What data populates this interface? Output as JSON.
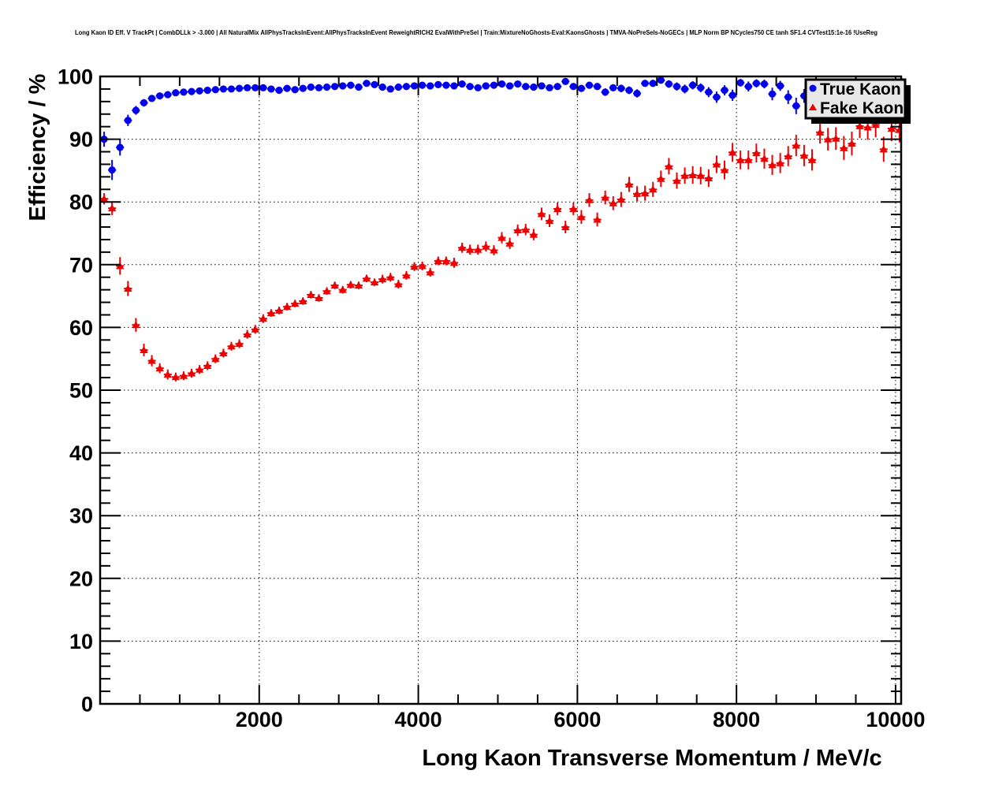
{
  "header": {
    "title": "Long Kaon ID Eff. V TrackPt | CombDLLk > -3.000 | All NaturalMix AllPhysTracksInEvent:AllPhysTracksInEvent ReweightRICH2 EvalWithPreSel | Train:MixtureNoGhosts-Eval:KaonsGhosts | TMVA-NoPreSels-NoGECs | MLP Norm BP NCycles750 CE tanh SF1.4 CVTest15:1e-16 !UseReg"
  },
  "colors": {
    "true_kaon": "#0000ee",
    "fake_kaon": "#ee0000",
    "frame": "#000000",
    "legend_bg": "#e8e8e8",
    "background": "#ffffff"
  },
  "chart_data": {
    "type": "scatter",
    "title": "Long Kaon ID Eff. V TrackPt",
    "xlabel": "Long Kaon Transverse Momentum / MeV/c",
    "ylabel": "Efficiency / %",
    "xlim": [
      0,
      10070
    ],
    "ylim": [
      0,
      100
    ],
    "x_tick_labels": [
      2000,
      4000,
      6000,
      8000,
      10000
    ],
    "x_minor_step": 500,
    "y_tick_labels": [
      0,
      10,
      20,
      30,
      40,
      50,
      60,
      70,
      80,
      90,
      100
    ],
    "y_minor_step": 2,
    "grid": "dotted",
    "legend_position": "top-right",
    "bin_half_width": 50,
    "series": [
      {
        "name": "True Kaon",
        "color": "#0000ee",
        "marker": "circle",
        "points": [
          [
            50,
            90.0,
            1.2
          ],
          [
            150,
            85.1,
            1.6
          ],
          [
            250,
            88.7,
            1.3
          ],
          [
            350,
            93.0,
            0.9
          ],
          [
            450,
            94.6,
            0.7
          ],
          [
            550,
            95.8,
            0.6
          ],
          [
            650,
            96.5,
            0.5
          ],
          [
            750,
            96.9,
            0.45
          ],
          [
            850,
            97.1,
            0.4
          ],
          [
            950,
            97.4,
            0.4
          ],
          [
            1050,
            97.5,
            0.35
          ],
          [
            1150,
            97.6,
            0.35
          ],
          [
            1250,
            97.7,
            0.3
          ],
          [
            1350,
            97.8,
            0.3
          ],
          [
            1450,
            97.9,
            0.3
          ],
          [
            1550,
            98.0,
            0.3
          ],
          [
            1650,
            98.0,
            0.3
          ],
          [
            1750,
            98.1,
            0.3
          ],
          [
            1850,
            98.2,
            0.28
          ],
          [
            1950,
            98.2,
            0.28
          ],
          [
            2050,
            98.2,
            0.28
          ],
          [
            2150,
            98.0,
            0.28
          ],
          [
            2250,
            97.8,
            0.28
          ],
          [
            2350,
            98.1,
            0.28
          ],
          [
            2450,
            97.9,
            0.28
          ],
          [
            2550,
            98.1,
            0.28
          ],
          [
            2650,
            98.3,
            0.28
          ],
          [
            2750,
            98.2,
            0.28
          ],
          [
            2850,
            98.3,
            0.28
          ],
          [
            2950,
            98.4,
            0.28
          ],
          [
            3050,
            98.5,
            0.28
          ],
          [
            3150,
            98.6,
            0.28
          ],
          [
            3250,
            98.3,
            0.3
          ],
          [
            3350,
            98.9,
            0.3
          ],
          [
            3450,
            98.7,
            0.3
          ],
          [
            3550,
            98.3,
            0.3
          ],
          [
            3650,
            98.0,
            0.3
          ],
          [
            3750,
            98.3,
            0.3
          ],
          [
            3850,
            98.4,
            0.3
          ],
          [
            3950,
            98.5,
            0.3
          ],
          [
            4050,
            98.6,
            0.3
          ],
          [
            4150,
            98.5,
            0.3
          ],
          [
            4250,
            98.7,
            0.32
          ],
          [
            4350,
            98.6,
            0.32
          ],
          [
            4450,
            98.5,
            0.32
          ],
          [
            4550,
            98.8,
            0.32
          ],
          [
            4650,
            98.4,
            0.35
          ],
          [
            4750,
            98.2,
            0.35
          ],
          [
            4850,
            98.5,
            0.35
          ],
          [
            4950,
            98.6,
            0.35
          ],
          [
            5050,
            98.8,
            0.35
          ],
          [
            5150,
            98.5,
            0.4
          ],
          [
            5250,
            98.8,
            0.4
          ],
          [
            5350,
            98.4,
            0.4
          ],
          [
            5450,
            98.3,
            0.4
          ],
          [
            5550,
            98.5,
            0.45
          ],
          [
            5650,
            98.2,
            0.45
          ],
          [
            5750,
            98.4,
            0.45
          ],
          [
            5850,
            99.2,
            0.4
          ],
          [
            5950,
            98.4,
            0.5
          ],
          [
            6050,
            98.1,
            0.5
          ],
          [
            6150,
            98.6,
            0.5
          ],
          [
            6250,
            98.4,
            0.55
          ],
          [
            6350,
            97.5,
            0.6
          ],
          [
            6450,
            98.2,
            0.55
          ],
          [
            6550,
            98.1,
            0.6
          ],
          [
            6650,
            97.8,
            0.6
          ],
          [
            6750,
            97.3,
            0.65
          ],
          [
            6850,
            98.9,
            0.5
          ],
          [
            6950,
            98.9,
            0.55
          ],
          [
            7050,
            99.4,
            0.45
          ],
          [
            7150,
            98.8,
            0.6
          ],
          [
            7250,
            98.4,
            0.65
          ],
          [
            7350,
            98.0,
            0.7
          ],
          [
            7450,
            98.6,
            0.65
          ],
          [
            7550,
            98.2,
            0.7
          ],
          [
            7650,
            97.5,
            0.8
          ],
          [
            7750,
            96.7,
            0.9
          ],
          [
            7850,
            97.8,
            0.8
          ],
          [
            7950,
            97.0,
            0.9
          ],
          [
            8050,
            99.0,
            0.6
          ],
          [
            8150,
            98.4,
            0.8
          ],
          [
            8250,
            98.9,
            0.65
          ],
          [
            8350,
            98.8,
            0.7
          ],
          [
            8450,
            97.2,
            1.0
          ],
          [
            8550,
            98.5,
            0.8
          ],
          [
            8650,
            96.7,
            1.1
          ],
          [
            8750,
            95.3,
            1.3
          ],
          [
            8850,
            96.9,
            1.1
          ]
        ]
      },
      {
        "name": "Fake Kaon",
        "color": "#ee0000",
        "marker": "triangle",
        "points": [
          [
            50,
            80.5,
            0.9
          ],
          [
            150,
            79.0,
            1.1
          ],
          [
            250,
            69.8,
            1.4
          ],
          [
            350,
            66.2,
            1.2
          ],
          [
            450,
            60.4,
            1.1
          ],
          [
            550,
            56.4,
            1.0
          ],
          [
            650,
            54.7,
            0.9
          ],
          [
            750,
            53.5,
            0.8
          ],
          [
            850,
            52.5,
            0.8
          ],
          [
            950,
            52.1,
            0.7
          ],
          [
            1050,
            52.3,
            0.7
          ],
          [
            1150,
            52.7,
            0.7
          ],
          [
            1250,
            53.3,
            0.7
          ],
          [
            1350,
            53.9,
            0.7
          ],
          [
            1450,
            55.0,
            0.7
          ],
          [
            1550,
            55.9,
            0.7
          ],
          [
            1650,
            57.0,
            0.7
          ],
          [
            1750,
            57.4,
            0.7
          ],
          [
            1850,
            58.9,
            0.7
          ],
          [
            1950,
            59.7,
            0.7
          ],
          [
            2050,
            61.4,
            0.7
          ],
          [
            2150,
            62.3,
            0.6
          ],
          [
            2250,
            62.7,
            0.6
          ],
          [
            2350,
            63.3,
            0.6
          ],
          [
            2450,
            63.8,
            0.6
          ],
          [
            2550,
            64.2,
            0.6
          ],
          [
            2650,
            65.2,
            0.6
          ],
          [
            2750,
            64.7,
            0.6
          ],
          [
            2850,
            65.8,
            0.6
          ],
          [
            2950,
            66.7,
            0.6
          ],
          [
            3050,
            66.0,
            0.6
          ],
          [
            3150,
            66.8,
            0.6
          ],
          [
            3250,
            66.7,
            0.6
          ],
          [
            3350,
            67.8,
            0.6
          ],
          [
            3450,
            67.2,
            0.6
          ],
          [
            3550,
            67.7,
            0.7
          ],
          [
            3650,
            68.0,
            0.7
          ],
          [
            3750,
            66.9,
            0.7
          ],
          [
            3850,
            68.3,
            0.7
          ],
          [
            3950,
            69.7,
            0.7
          ],
          [
            4050,
            69.8,
            0.7
          ],
          [
            4150,
            68.8,
            0.7
          ],
          [
            4250,
            70.6,
            0.7
          ],
          [
            4350,
            70.6,
            0.7
          ],
          [
            4450,
            70.3,
            0.8
          ],
          [
            4550,
            72.7,
            0.8
          ],
          [
            4650,
            72.4,
            0.8
          ],
          [
            4750,
            72.4,
            0.8
          ],
          [
            4850,
            72.9,
            0.8
          ],
          [
            4950,
            72.3,
            0.8
          ],
          [
            5050,
            74.3,
            0.9
          ],
          [
            5150,
            73.4,
            0.9
          ],
          [
            5250,
            75.5,
            0.9
          ],
          [
            5350,
            75.6,
            0.9
          ],
          [
            5450,
            74.8,
            0.9
          ],
          [
            5550,
            78.1,
            1.0
          ],
          [
            5650,
            77.0,
            1.0
          ],
          [
            5750,
            78.9,
            1.0
          ],
          [
            5850,
            76.0,
            1.0
          ],
          [
            5950,
            78.9,
            1.0
          ],
          [
            6050,
            77.6,
            1.1
          ],
          [
            6150,
            80.3,
            1.1
          ],
          [
            6250,
            77.2,
            1.1
          ],
          [
            6350,
            80.7,
            1.1
          ],
          [
            6450,
            79.8,
            1.1
          ],
          [
            6550,
            80.4,
            1.2
          ],
          [
            6650,
            82.8,
            1.2
          ],
          [
            6750,
            81.3,
            1.2
          ],
          [
            6850,
            81.4,
            1.2
          ],
          [
            6950,
            82.0,
            1.2
          ],
          [
            7050,
            83.7,
            1.3
          ],
          [
            7150,
            85.7,
            1.3
          ],
          [
            7250,
            83.4,
            1.3
          ],
          [
            7350,
            84.2,
            1.3
          ],
          [
            7450,
            84.3,
            1.4
          ],
          [
            7550,
            84.2,
            1.4
          ],
          [
            7650,
            83.8,
            1.4
          ],
          [
            7750,
            86.0,
            1.4
          ],
          [
            7850,
            85.1,
            1.5
          ],
          [
            7950,
            87.9,
            1.5
          ],
          [
            8050,
            86.7,
            1.5
          ],
          [
            8150,
            86.7,
            1.5
          ],
          [
            8250,
            87.8,
            1.5
          ],
          [
            8350,
            86.9,
            1.6
          ],
          [
            8450,
            85.9,
            1.6
          ],
          [
            8550,
            86.2,
            1.6
          ],
          [
            8650,
            87.3,
            1.6
          ],
          [
            8750,
            89.0,
            1.7
          ],
          [
            8850,
            87.4,
            1.7
          ],
          [
            8950,
            86.7,
            1.7
          ],
          [
            9050,
            91.1,
            1.8
          ],
          [
            9150,
            90.0,
            1.8
          ],
          [
            9250,
            90.1,
            1.8
          ],
          [
            9350,
            88.6,
            1.9
          ],
          [
            9450,
            89.3,
            1.9
          ],
          [
            9550,
            92.1,
            1.9
          ],
          [
            9650,
            91.9,
            2.0
          ],
          [
            9750,
            92.3,
            2.0
          ],
          [
            9850,
            88.4,
            2.0
          ],
          [
            9950,
            91.7,
            2.0
          ],
          [
            10050,
            91.5,
            2.0
          ]
        ]
      }
    ]
  }
}
